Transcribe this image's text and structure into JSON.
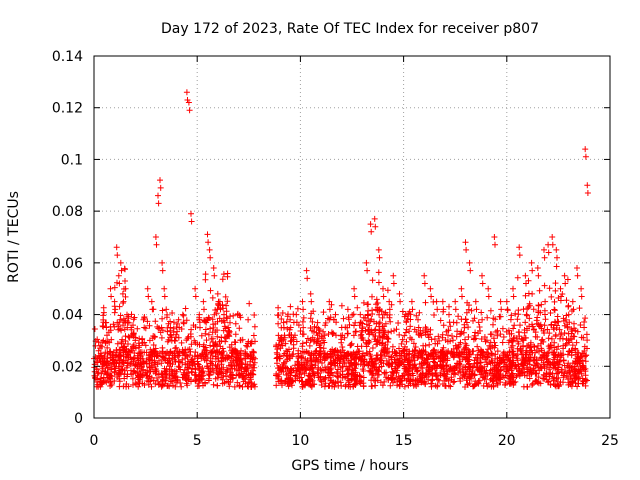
{
  "chart_data": {
    "type": "scatter",
    "title": "Day 172 of 2023, Rate Of TEC Index for receiver p807",
    "xlabel": "GPS time / hours",
    "ylabel": "ROTI / TECUs",
    "xlim": [
      0,
      25
    ],
    "ylim": [
      0,
      0.14
    ],
    "x_ticks": [
      0,
      5,
      10,
      15,
      20,
      25
    ],
    "y_ticks": [
      0,
      0.02,
      0.04,
      0.06,
      0.08,
      0.1,
      0.12,
      0.14
    ],
    "x_tick_labels": [
      "0",
      "5",
      "10",
      "15",
      "20",
      "25"
    ],
    "y_tick_labels": [
      "0",
      "0.02",
      "0.04",
      "0.06",
      "0.08",
      "0.1",
      "0.12",
      "0.14"
    ],
    "grid": true,
    "marker": "+",
    "marker_color": "#ff0000",
    "data_gap_hours": [
      7.8,
      8.8
    ],
    "series": [
      {
        "x": [
          0.1,
          0.3,
          0.6,
          0.8,
          1.0,
          1.1,
          1.2,
          1.3,
          1.4,
          1.5,
          1.6,
          1.8,
          2.0,
          2.2,
          2.4,
          2.6,
          2.8,
          3.0,
          3.1,
          3.2,
          3.3,
          3.4,
          3.5,
          3.7,
          3.9,
          4.1,
          4.3,
          4.5,
          4.6,
          4.7,
          4.9,
          5.1,
          5.3,
          5.5,
          5.6,
          5.8,
          6.0,
          6.1,
          6.3,
          6.5,
          6.7,
          7.0,
          7.3,
          7.6,
          9.0,
          9.2,
          9.5,
          9.8,
          10.1,
          10.3,
          10.5,
          10.8,
          11.1,
          11.4,
          11.7,
          12.0,
          12.3,
          12.6,
          12.9,
          13.2,
          13.4,
          13.6,
          13.8,
          14.0,
          14.3,
          14.5,
          14.8,
          15.1,
          15.4,
          15.7,
          16.0,
          16.3,
          16.6,
          16.9,
          17.2,
          17.5,
          17.8,
          18.0,
          18.2,
          18.5,
          18.8,
          19.1,
          19.4,
          19.7,
          20.0,
          20.3,
          20.6,
          20.9,
          21.2,
          21.5,
          21.8,
          22.0,
          22.2,
          22.4,
          22.6,
          22.8,
          23.0,
          23.2,
          23.4,
          23.6,
          23.8,
          23.9
        ],
        "y": [
          0.022,
          0.028,
          0.035,
          0.05,
          0.045,
          0.066,
          0.055,
          0.06,
          0.048,
          0.053,
          0.04,
          0.035,
          0.03,
          0.028,
          0.038,
          0.05,
          0.045,
          0.07,
          0.086,
          0.092,
          0.06,
          0.05,
          0.042,
          0.035,
          0.03,
          0.038,
          0.04,
          0.126,
          0.122,
          0.079,
          0.05,
          0.04,
          0.045,
          0.071,
          0.065,
          0.058,
          0.048,
          0.045,
          0.04,
          0.035,
          0.025,
          0.02,
          0.018,
          0.015,
          0.03,
          0.035,
          0.038,
          0.04,
          0.045,
          0.057,
          0.048,
          0.035,
          0.03,
          0.045,
          0.04,
          0.035,
          0.042,
          0.05,
          0.04,
          0.06,
          0.075,
          0.077,
          0.065,
          0.05,
          0.045,
          0.055,
          0.048,
          0.04,
          0.045,
          0.038,
          0.055,
          0.05,
          0.045,
          0.045,
          0.04,
          0.045,
          0.05,
          0.068,
          0.06,
          0.045,
          0.055,
          0.05,
          0.07,
          0.045,
          0.045,
          0.05,
          0.066,
          0.055,
          0.06,
          0.058,
          0.065,
          0.067,
          0.07,
          0.065,
          0.05,
          0.055,
          0.04,
          0.045,
          0.058,
          0.05,
          0.104,
          0.09
        ]
      }
    ]
  }
}
